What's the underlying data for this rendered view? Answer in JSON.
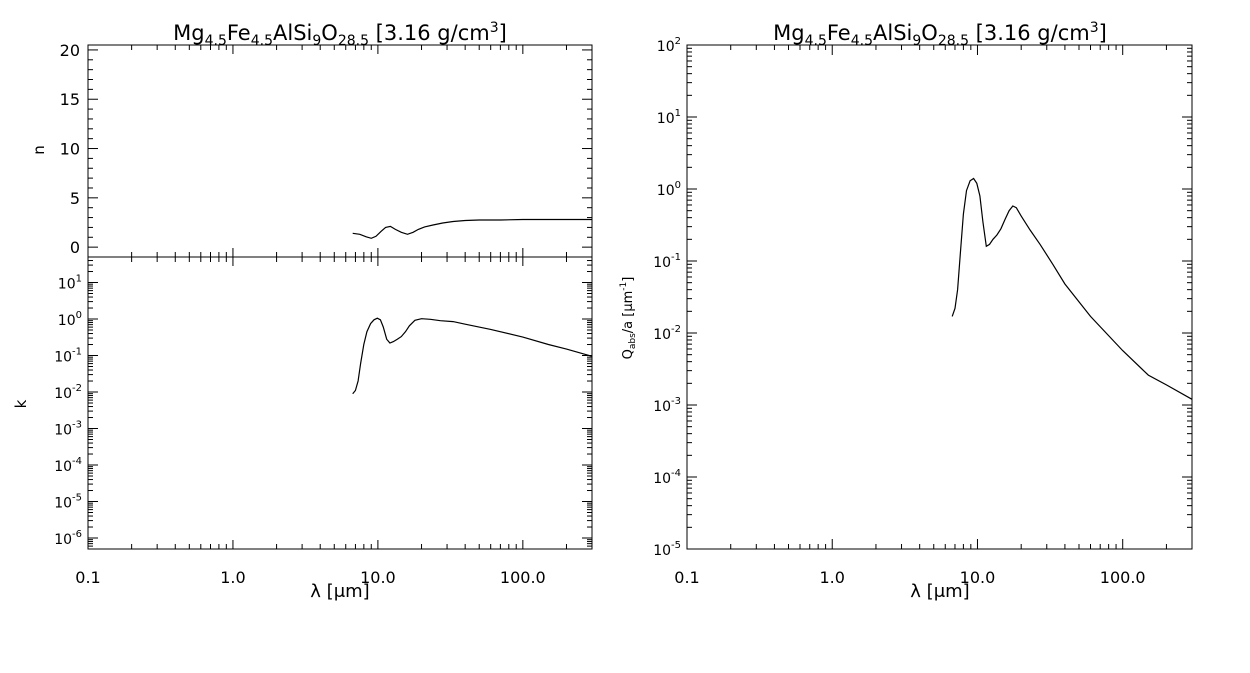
{
  "chart_data": [
    {
      "id": "nk",
      "type": "line",
      "title": {
        "base": "Mg",
        "s1": "4.5",
        "m1": "Fe",
        "s2": "4.5",
        "m2": "AlSi",
        "s3": "9",
        "m3": "O",
        "s4": "28.5",
        "m4": " [3.16 g/cm",
        "sup": "3",
        "end": "]"
      },
      "xlabel": "λ [μm]",
      "xscale": "log",
      "xlim": [
        0.1,
        300
      ],
      "xticks": [
        0.1,
        1.0,
        10.0,
        100.0
      ],
      "xtick_labels": [
        "0.1",
        "1.0",
        "10.0",
        "100.0"
      ],
      "grid": false,
      "panels": [
        {
          "id": "n",
          "ylabel": "n",
          "yscale": "linear",
          "ylim": [
            -1,
            20.5
          ],
          "yticks": [
            0,
            5,
            10,
            15,
            20
          ],
          "ytick_labels": [
            "0",
            "5",
            "10",
            "15",
            "20"
          ],
          "series": [
            {
              "x": [
                6.7,
                7.5,
                8.3,
                9.0,
                9.7,
                10.5,
                11.3,
                12.2,
                13.2,
                14.5,
                16.0,
                17.5,
                19.0,
                21.0,
                24.0,
                28.0,
                33.0,
                40.0,
                50.0,
                70.0,
                100.0,
                150.0,
                200.0,
                300.0
              ],
              "y": [
                1.4,
                1.3,
                1.05,
                0.9,
                1.1,
                1.6,
                2.0,
                2.1,
                1.8,
                1.5,
                1.3,
                1.5,
                1.8,
                2.05,
                2.25,
                2.45,
                2.6,
                2.7,
                2.75,
                2.75,
                2.8,
                2.8,
                2.8,
                2.8
              ]
            }
          ]
        },
        {
          "id": "k",
          "ylabel": "k",
          "yscale": "log",
          "ylim": [
            5e-07,
            50
          ],
          "yticks": [
            1e-06,
            1e-05,
            0.0001,
            0.001,
            0.01,
            0.1,
            1.0,
            10.0
          ],
          "ytick_labels": [
            {
              "b": "10",
              "e": "-6"
            },
            {
              "b": "10",
              "e": "-5"
            },
            {
              "b": "10",
              "e": "-4"
            },
            {
              "b": "10",
              "e": "-3"
            },
            {
              "b": "10",
              "e": "-2"
            },
            {
              "b": "10",
              "e": "-1"
            },
            {
              "b": "10",
              "e": "0"
            },
            {
              "b": "10",
              "e": "1"
            }
          ],
          "series": [
            {
              "x": [
                6.7,
                7.0,
                7.3,
                7.6,
                8.0,
                8.4,
                8.9,
                9.4,
                9.9,
                10.4,
                10.9,
                11.5,
                12.1,
                12.8,
                13.6,
                14.5,
                15.5,
                16.5,
                18.0,
                20.0,
                23.0,
                27.0,
                33.0,
                40.0,
                60.0,
                100.0,
                150.0,
                200.0,
                300.0
              ],
              "y": [
                0.009,
                0.011,
                0.02,
                0.06,
                0.2,
                0.45,
                0.75,
                0.95,
                1.05,
                0.95,
                0.6,
                0.28,
                0.22,
                0.24,
                0.28,
                0.33,
                0.45,
                0.65,
                0.92,
                1.02,
                0.98,
                0.9,
                0.85,
                0.72,
                0.52,
                0.32,
                0.2,
                0.15,
                0.095
              ]
            }
          ]
        }
      ]
    },
    {
      "id": "qabs",
      "type": "line",
      "title": {
        "base": "Mg",
        "s1": "4.5",
        "m1": "Fe",
        "s2": "4.5",
        "m2": "AlSi",
        "s3": "9",
        "m3": "O",
        "s4": "28.5",
        "m4": " [3.16 g/cm",
        "sup": "3",
        "end": "]"
      },
      "xlabel": "λ [μm]",
      "ylabel": {
        "q": "Q",
        "sub": "abs",
        "rest": "/a [μm",
        "sup": "-1",
        "end": "]"
      },
      "xscale": "log",
      "yscale": "log",
      "xlim": [
        0.1,
        300
      ],
      "ylim": [
        1e-05,
        100
      ],
      "xticks": [
        0.1,
        1.0,
        10.0,
        100.0
      ],
      "xtick_labels": [
        "0.1",
        "1.0",
        "10.0",
        "100.0"
      ],
      "yticks": [
        1e-05,
        0.0001,
        0.001,
        0.01,
        0.1,
        1.0,
        10.0,
        100.0
      ],
      "ytick_labels": [
        {
          "b": "10",
          "e": "-5"
        },
        {
          "b": "10",
          "e": "-4"
        },
        {
          "b": "10",
          "e": "-3"
        },
        {
          "b": "10",
          "e": "-2"
        },
        {
          "b": "10",
          "e": "-1"
        },
        {
          "b": "10",
          "e": "0"
        },
        {
          "b": "10",
          "e": "1"
        },
        {
          "b": "10",
          "e": "2"
        }
      ],
      "grid": false,
      "series": [
        {
          "x": [
            6.7,
            7.0,
            7.3,
            7.6,
            8.0,
            8.4,
            8.9,
            9.4,
            9.9,
            10.4,
            10.9,
            11.5,
            12.1,
            12.8,
            13.6,
            14.5,
            15.5,
            16.5,
            17.5,
            18.5,
            20.0,
            23.0,
            27.0,
            33.0,
            40.0,
            60.0,
            100.0,
            150.0,
            200.0,
            300.0
          ],
          "y": [
            0.017,
            0.022,
            0.04,
            0.12,
            0.45,
            0.95,
            1.3,
            1.4,
            1.2,
            0.8,
            0.35,
            0.16,
            0.17,
            0.2,
            0.23,
            0.28,
            0.38,
            0.5,
            0.58,
            0.55,
            0.42,
            0.27,
            0.17,
            0.09,
            0.048,
            0.017,
            0.0057,
            0.0026,
            0.0019,
            0.0012
          ]
        }
      ]
    }
  ]
}
